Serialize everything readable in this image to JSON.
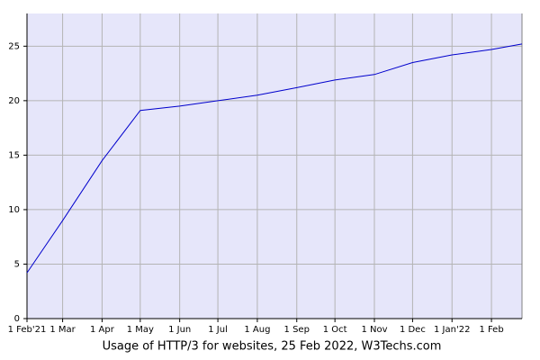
{
  "chart_data": {
    "type": "line",
    "title": "Usage of HTTP/3 for websites, 25 Feb 2022, W3Techs.com",
    "x": [
      "2021-02-01",
      "2021-03-01",
      "2021-04-01",
      "2021-05-01",
      "2021-06-01",
      "2021-07-01",
      "2021-08-01",
      "2021-09-01",
      "2021-10-01",
      "2021-11-01",
      "2021-12-01",
      "2022-01-01",
      "2022-02-01",
      "2022-02-25"
    ],
    "series": [
      {
        "name": "HTTP/3",
        "color": "#0000cc",
        "values": [
          4.2,
          9.0,
          14.5,
          19.1,
          19.5,
          20.0,
          20.5,
          21.2,
          21.9,
          22.4,
          23.5,
          24.2,
          24.7,
          25.2
        ]
      }
    ],
    "xlim": [
      "2021-02-01",
      "2022-02-25"
    ],
    "xticks": [
      {
        "value": "2021-02-01",
        "label": "1 Feb'21"
      },
      {
        "value": "2021-03-01",
        "label": "1 Mar"
      },
      {
        "value": "2021-04-01",
        "label": "1 Apr"
      },
      {
        "value": "2021-05-01",
        "label": "1 May"
      },
      {
        "value": "2021-06-01",
        "label": "1 Jun"
      },
      {
        "value": "2021-07-01",
        "label": "1 Jul"
      },
      {
        "value": "2021-08-01",
        "label": "1 Aug"
      },
      {
        "value": "2021-09-01",
        "label": "1 Sep"
      },
      {
        "value": "2021-10-01",
        "label": "1 Oct"
      },
      {
        "value": "2021-11-01",
        "label": "1 Nov"
      },
      {
        "value": "2021-12-01",
        "label": "1 Dec"
      },
      {
        "value": "2022-01-01",
        "label": "1 Jan'22"
      },
      {
        "value": "2022-02-01",
        "label": "1 Feb"
      }
    ],
    "ylim": [
      0,
      28
    ],
    "yticks": [
      0,
      5,
      10,
      15,
      20,
      25
    ],
    "grid": true,
    "background": "#e6e6fa"
  }
}
